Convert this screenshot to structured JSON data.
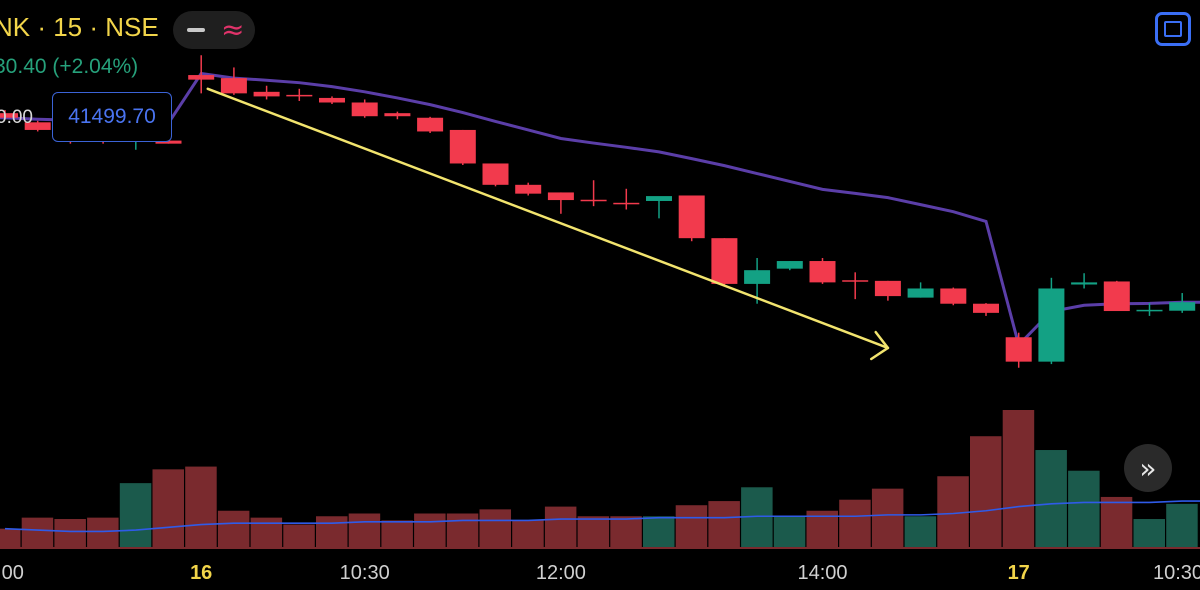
{
  "header": {
    "title": "NK · 15 · NSE",
    "change": "30.40 (+2.04%)",
    "price_prefix": "0.00",
    "price_box": "41499.70"
  },
  "icons": {
    "toggle_line": "line-style-icon",
    "toggle_wave": "wave-style-icon",
    "fullscreen": "fullscreen-icon",
    "scroll": "scroll-right-icon"
  },
  "chart_data": {
    "type": "candlestick",
    "x_ticks": [
      {
        "label": ":00",
        "index": 0,
        "bold": false
      },
      {
        "label": "16",
        "index": 6,
        "bold": true
      },
      {
        "label": "10:30",
        "index": 11,
        "bold": false
      },
      {
        "label": "12:00",
        "index": 17,
        "bold": false
      },
      {
        "label": "14:00",
        "index": 25,
        "bold": false
      },
      {
        "label": "17",
        "index": 31,
        "bold": true
      },
      {
        "label": "10:30",
        "index": 36,
        "bold": false
      }
    ],
    "y_range": [
      40060,
      41700
    ],
    "candles": [
      {
        "o": 41460,
        "h": 41470,
        "l": 41440,
        "c": 41445
      },
      {
        "o": 41430,
        "h": 41435,
        "l": 41400,
        "c": 41405
      },
      {
        "o": 41403,
        "h": 41410,
        "l": 41360,
        "c": 41400
      },
      {
        "o": 41400,
        "h": 41408,
        "l": 41360,
        "c": 41380
      },
      {
        "o": 41380,
        "h": 41388,
        "l": 41340,
        "c": 41382
      },
      {
        "o": 41370,
        "h": 41378,
        "l": 41360,
        "c": 41360
      },
      {
        "o": 41585,
        "h": 41650,
        "l": 41525,
        "c": 41570
      },
      {
        "o": 41575,
        "h": 41610,
        "l": 41520,
        "c": 41525
      },
      {
        "o": 41530,
        "h": 41550,
        "l": 41505,
        "c": 41515
      },
      {
        "o": 41520,
        "h": 41540,
        "l": 41500,
        "c": 41515
      },
      {
        "o": 41510,
        "h": 41515,
        "l": 41490,
        "c": 41495
      },
      {
        "o": 41495,
        "h": 41505,
        "l": 41445,
        "c": 41450
      },
      {
        "o": 41460,
        "h": 41465,
        "l": 41440,
        "c": 41450
      },
      {
        "o": 41445,
        "h": 41448,
        "l": 41395,
        "c": 41400
      },
      {
        "o": 41405,
        "h": 41405,
        "l": 41290,
        "c": 41295
      },
      {
        "o": 41295,
        "h": 41290,
        "l": 41220,
        "c": 41225
      },
      {
        "o": 41225,
        "h": 41232,
        "l": 41190,
        "c": 41196
      },
      {
        "o": 41200,
        "h": 41200,
        "l": 41130,
        "c": 41175
      },
      {
        "o": 41176,
        "h": 41240,
        "l": 41155,
        "c": 41174
      },
      {
        "o": 41166,
        "h": 41212,
        "l": 41144,
        "c": 41164
      },
      {
        "o": 41172,
        "h": 41180,
        "l": 41115,
        "c": 41188
      },
      {
        "o": 41190,
        "h": 41190,
        "l": 41040,
        "c": 41050
      },
      {
        "o": 41050,
        "h": 41050,
        "l": 40895,
        "c": 40900
      },
      {
        "o": 40900,
        "h": 40985,
        "l": 40835,
        "c": 40945
      },
      {
        "o": 40950,
        "h": 40975,
        "l": 40945,
        "c": 40975
      },
      {
        "o": 40975,
        "h": 40985,
        "l": 40900,
        "c": 40905
      },
      {
        "o": 40912,
        "h": 40938,
        "l": 40850,
        "c": 40910
      },
      {
        "o": 40910,
        "h": 40910,
        "l": 40845,
        "c": 40860
      },
      {
        "o": 40855,
        "h": 40905,
        "l": 40855,
        "c": 40885
      },
      {
        "o": 40885,
        "h": 40888,
        "l": 40830,
        "c": 40835
      },
      {
        "o": 40835,
        "h": 40837,
        "l": 40795,
        "c": 40805
      },
      {
        "o": 40725,
        "h": 40740,
        "l": 40625,
        "c": 40645
      },
      {
        "o": 40645,
        "h": 40920,
        "l": 40637,
        "c": 40885
      },
      {
        "o": 40898,
        "h": 40935,
        "l": 40885,
        "c": 40905
      },
      {
        "o": 40908,
        "h": 40910,
        "l": 40815,
        "c": 40811
      },
      {
        "o": 40810,
        "h": 40837,
        "l": 40795,
        "c": 40815
      },
      {
        "o": 40812,
        "h": 40870,
        "l": 40805,
        "c": 40840
      }
    ],
    "volumes": [
      0.14,
      0.22,
      0.21,
      0.22,
      0.47,
      0.57,
      0.59,
      0.27,
      0.22,
      0.17,
      0.23,
      0.25,
      0.2,
      0.25,
      0.25,
      0.28,
      0.2,
      0.3,
      0.23,
      0.23,
      0.23,
      0.31,
      0.34,
      0.44,
      0.23,
      0.27,
      0.35,
      0.43,
      0.23,
      0.52,
      0.81,
      1.0,
      0.71,
      0.56,
      0.37,
      0.21,
      0.32
    ],
    "upper_band": [
      41445,
      41440,
      41437,
      41434,
      41431,
      41428,
      41590,
      41575,
      41568,
      41560,
      41547,
      41530,
      41510,
      41488,
      41462,
      41433,
      41405,
      41377,
      41362,
      41348,
      41333,
      41311,
      41288,
      41262,
      41236,
      41210,
      41197,
      41183,
      41160,
      41137,
      41105,
      40700,
      40810,
      40830,
      40835,
      40836,
      40840
    ],
    "volume_ma": [
      0.14,
      0.13,
      0.12,
      0.12,
      0.13,
      0.15,
      0.17,
      0.18,
      0.18,
      0.18,
      0.18,
      0.19,
      0.19,
      0.19,
      0.2,
      0.2,
      0.2,
      0.21,
      0.21,
      0.21,
      0.22,
      0.22,
      0.22,
      0.23,
      0.23,
      0.23,
      0.23,
      0.24,
      0.24,
      0.25,
      0.27,
      0.3,
      0.32,
      0.33,
      0.33,
      0.33,
      0.34
    ],
    "trend_arrow": {
      "from_index": 6.2,
      "from_price": 41540,
      "to_index": 27,
      "to_price": 40690
    },
    "colors": {
      "up": "#13a184",
      "down": "#f23a4d",
      "vol_up": "#1b5a4c",
      "vol_down": "#7a2a2e",
      "band": "#5b3ea8",
      "volume_ma": "#2f5be8",
      "arrow": "#f2e46e",
      "baseline": "#7a2a2e"
    }
  }
}
